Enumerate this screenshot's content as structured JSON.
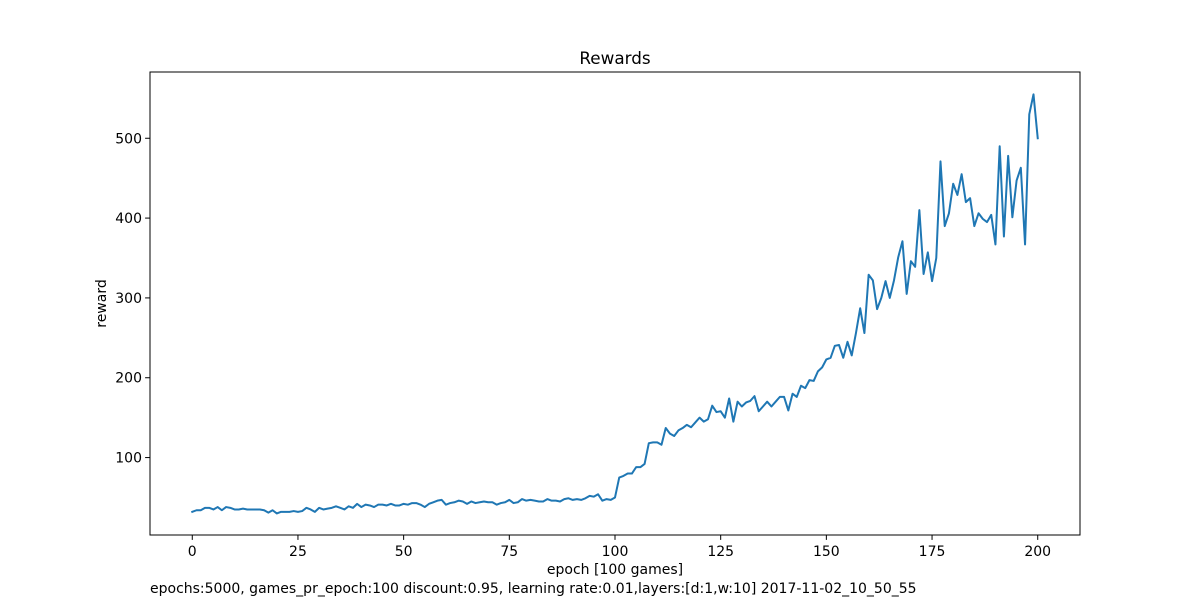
{
  "chart_data": {
    "type": "line",
    "title": "Rewards",
    "xlabel": "epoch [100 games]",
    "ylabel": "reward",
    "xlim": [
      -10,
      210
    ],
    "ylim": [
      3,
      583
    ],
    "xticks": [
      0,
      25,
      50,
      75,
      100,
      125,
      150,
      175,
      200
    ],
    "yticks": [
      100,
      200,
      300,
      400,
      500
    ],
    "grid": false,
    "line_color": "#1f77b4",
    "series": [
      {
        "x": [
          0,
          1,
          2,
          3,
          4,
          5,
          6,
          7,
          8,
          9,
          10,
          11,
          12,
          13,
          14,
          15,
          16,
          17,
          18,
          19,
          20,
          21,
          22,
          23,
          24,
          25,
          26,
          27,
          28,
          29,
          30,
          31,
          32,
          33,
          34,
          35,
          36,
          37,
          38,
          39,
          40,
          41,
          42,
          43,
          44,
          45,
          46,
          47,
          48,
          49,
          50,
          51,
          52,
          53,
          54,
          55,
          56,
          57,
          58,
          59,
          60,
          61,
          62,
          63,
          64,
          65,
          66,
          67,
          68,
          69,
          70,
          71,
          72,
          73,
          74,
          75,
          76,
          77,
          78,
          79,
          80,
          81,
          82,
          83,
          84,
          85,
          86,
          87,
          88,
          89,
          90,
          91,
          92,
          93,
          94,
          95,
          96,
          97,
          98,
          99,
          100,
          101,
          102,
          103,
          104,
          105,
          106,
          107,
          108,
          109,
          110,
          111,
          112,
          113,
          114,
          115,
          116,
          117,
          118,
          119,
          120,
          121,
          122,
          123,
          124,
          125,
          126,
          127,
          128,
          129,
          130,
          131,
          132,
          133,
          134,
          135,
          136,
          137,
          138,
          139,
          140,
          141,
          142,
          143,
          144,
          145,
          146,
          147,
          148,
          149,
          150,
          151,
          152,
          153,
          154,
          155,
          156,
          157,
          158,
          159,
          160,
          161,
          162,
          163,
          164,
          165,
          166,
          167,
          168,
          169,
          170,
          171,
          172,
          173,
          174,
          175,
          176,
          177,
          178,
          179,
          180,
          181,
          182,
          183,
          184,
          185,
          186,
          187,
          188,
          189,
          190,
          191,
          192,
          193,
          194,
          195,
          196,
          197,
          198,
          199,
          200
        ],
        "values": [
          32,
          34,
          34,
          37,
          37,
          35,
          38,
          34,
          38,
          37,
          35,
          35,
          36,
          35,
          35,
          35,
          35,
          34,
          31,
          34,
          30,
          32,
          32,
          32,
          33,
          32,
          33,
          37,
          35,
          32,
          37,
          35,
          36,
          37,
          39,
          37,
          35,
          39,
          37,
          42,
          38,
          41,
          40,
          38,
          41,
          41,
          40,
          42,
          40,
          40,
          42,
          41,
          43,
          43,
          41,
          38,
          42,
          44,
          46,
          47,
          41,
          43,
          44,
          46,
          45,
          42,
          45,
          43,
          44,
          45,
          44,
          44,
          41,
          43,
          44,
          47,
          43,
          44,
          48,
          46,
          47,
          46,
          45,
          45,
          48,
          46,
          46,
          45,
          48,
          49,
          47,
          48,
          47,
          49,
          52,
          51,
          54,
          46,
          48,
          47,
          50,
          75,
          77,
          80,
          80,
          88,
          88,
          92,
          118,
          119,
          119,
          116,
          137,
          130,
          127,
          134,
          137,
          141,
          138,
          144,
          150,
          145,
          148,
          165,
          157,
          158,
          150,
          174,
          145,
          170,
          164,
          169,
          171,
          177,
          158,
          164,
          170,
          164,
          170,
          176,
          176,
          159,
          180,
          176,
          190,
          187,
          197,
          196,
          208,
          213,
          223,
          225,
          240,
          241,
          225,
          245,
          228,
          256,
          287,
          256,
          329,
          322,
          286,
          300,
          321,
          300,
          322,
          351,
          371,
          305,
          346,
          339,
          410,
          330,
          357,
          321,
          350,
          471,
          390,
          406,
          443,
          429,
          455,
          420,
          425,
          390,
          406,
          399,
          395,
          404,
          367,
          490,
          377,
          478,
          401,
          447,
          463,
          367,
          530,
          555,
          500
        ]
      }
    ],
    "caption": "epochs:5000, games_pr_epoch:100 discount:0.95, learning rate:0.01,layers:[d:1,w:10] 2017-11-02_10_50_55"
  }
}
